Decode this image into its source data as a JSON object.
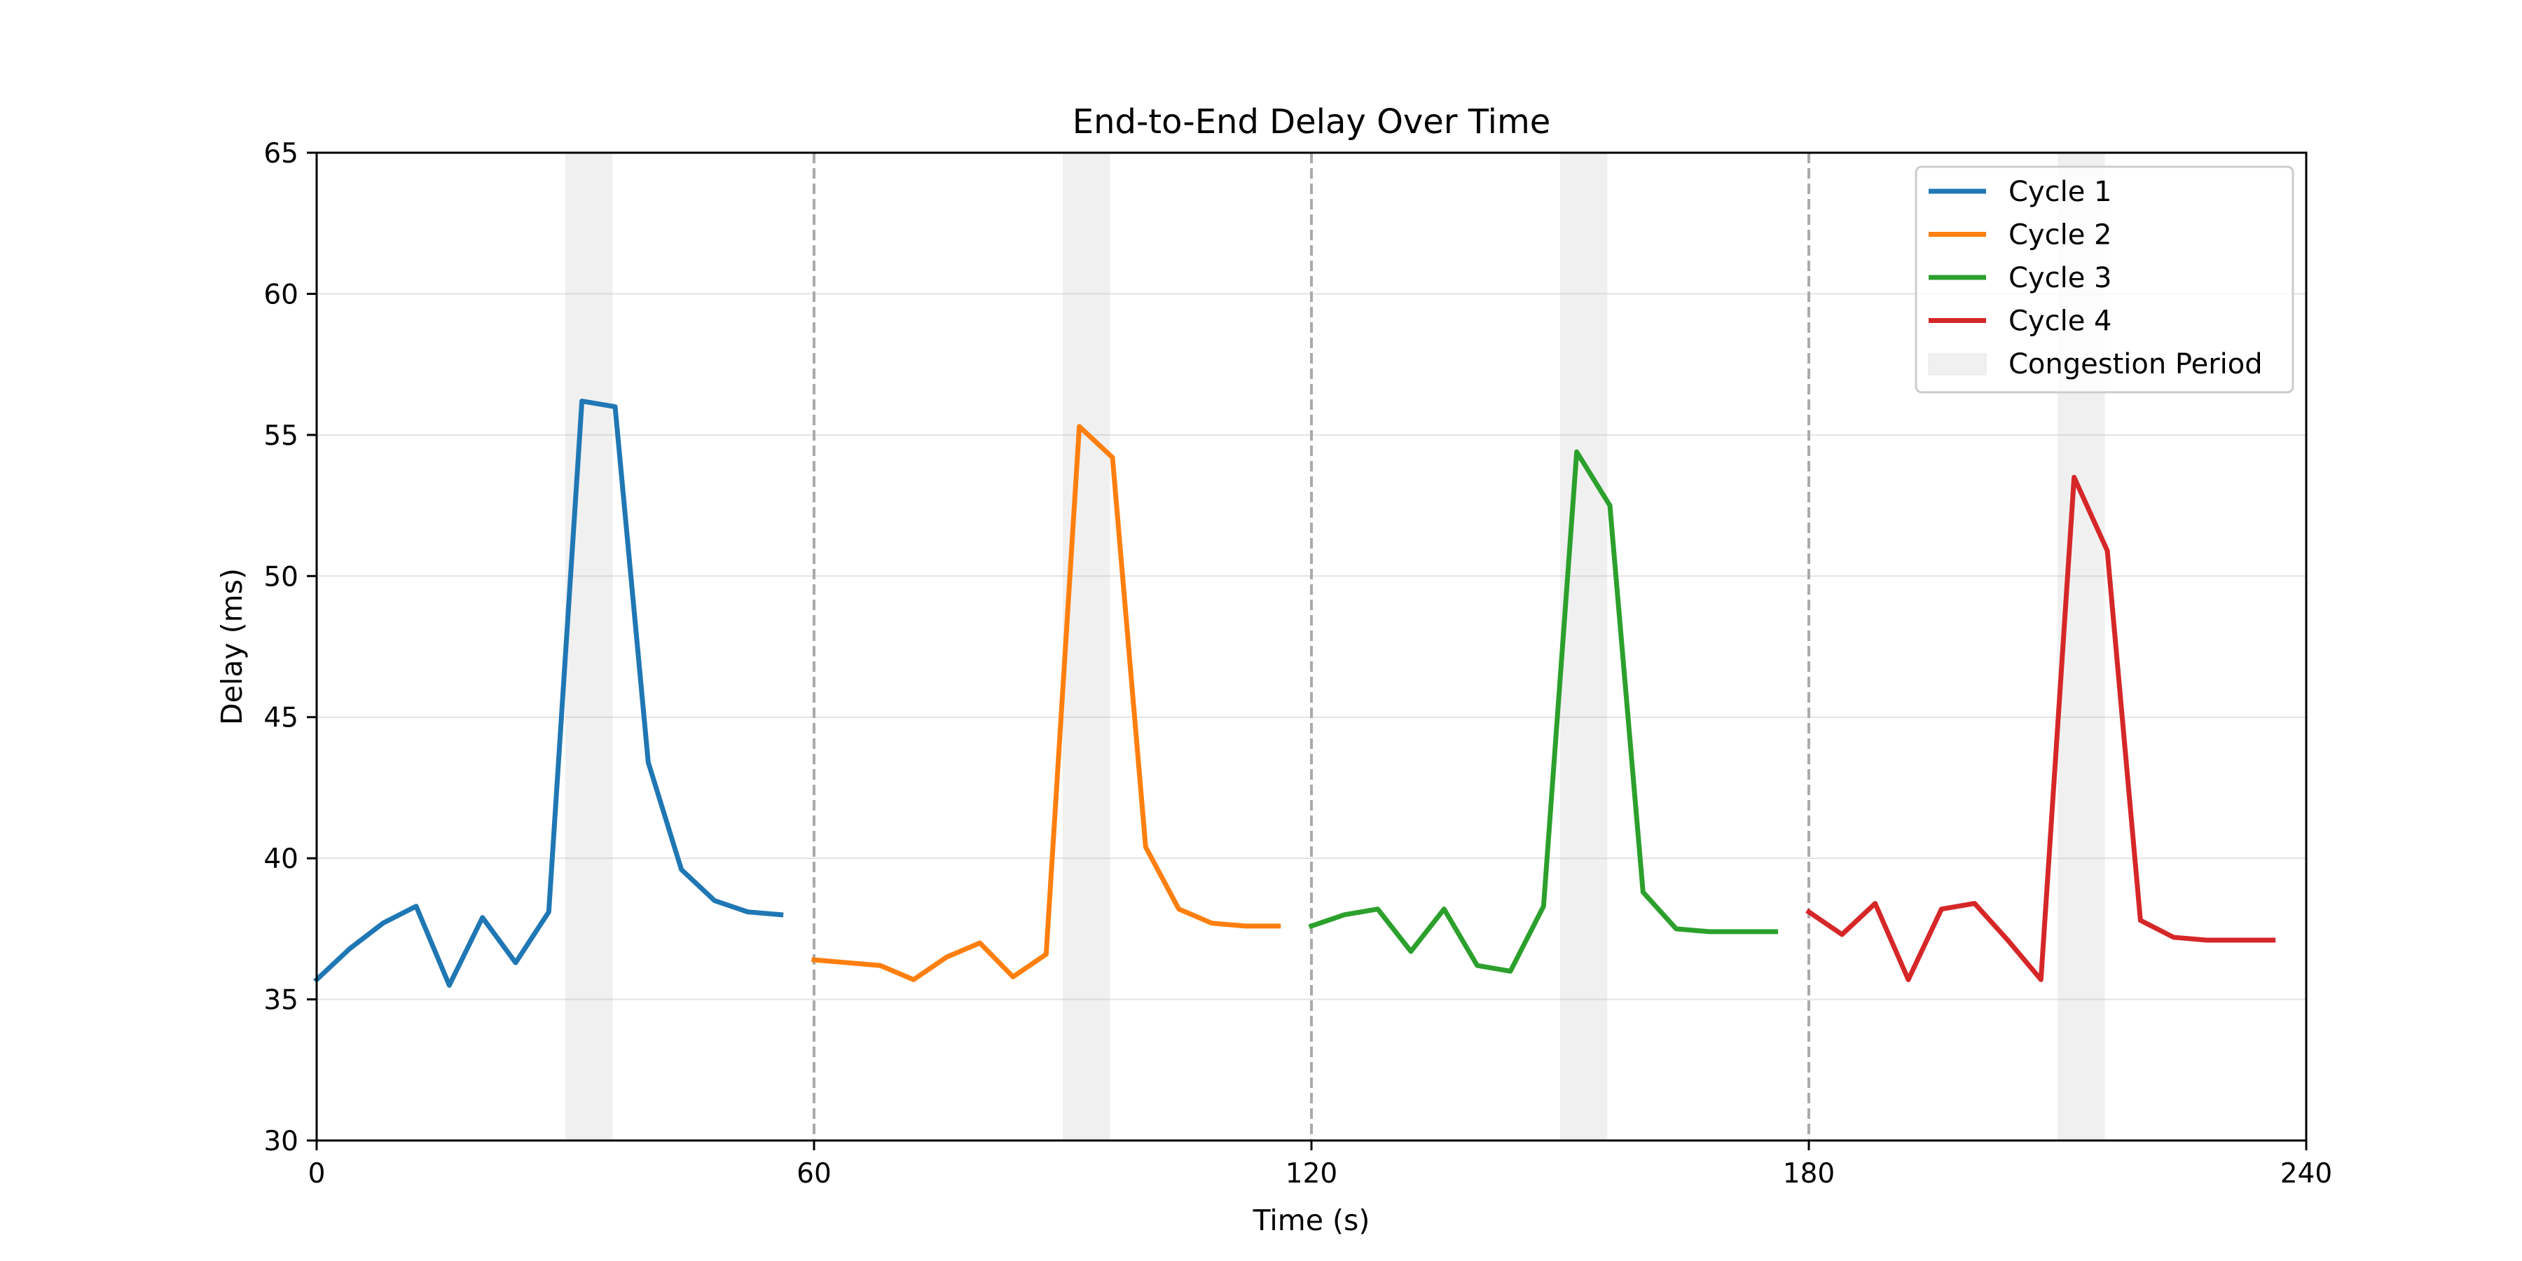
{
  "chart_data": {
    "type": "line",
    "title": "End-to-End Delay Over Time",
    "xlabel": "Time (s)",
    "ylabel": "Delay (ms)",
    "xlim": [
      0,
      240
    ],
    "ylim": [
      30,
      65
    ],
    "xticks": [
      0,
      60,
      120,
      180,
      240
    ],
    "yticks": [
      30,
      35,
      40,
      45,
      50,
      55,
      60,
      65
    ],
    "grid": "horizontal",
    "legend_position": "top-right",
    "cycle_boundaries": [
      60,
      120,
      180
    ],
    "congestion_periods": [
      [
        30,
        35.7
      ],
      [
        90,
        95.7
      ],
      [
        150,
        155.7
      ],
      [
        210,
        215.7
      ]
    ],
    "congestion_label": "Congestion Period",
    "congestion_color": "#d9d9d9",
    "boundary_color": "#aaaaaa",
    "series": [
      {
        "name": "Cycle 1",
        "color": "#1f77b4",
        "x": [
          0,
          4,
          8,
          12,
          16,
          20,
          24,
          28,
          32,
          36,
          40,
          44,
          48,
          52,
          56
        ],
        "y": [
          35.7,
          36.8,
          37.7,
          38.3,
          35.5,
          37.9,
          36.3,
          38.1,
          56.2,
          56.0,
          43.4,
          39.6,
          38.5,
          38.1,
          38.0
        ]
      },
      {
        "name": "Cycle 2",
        "color": "#ff7f0e",
        "x": [
          60,
          64,
          68,
          72,
          76,
          80,
          84,
          88,
          92,
          96,
          100,
          104,
          108,
          112,
          116
        ],
        "y": [
          36.4,
          36.3,
          36.2,
          35.7,
          36.5,
          37.0,
          35.8,
          36.6,
          55.3,
          54.2,
          40.4,
          38.2,
          37.7,
          37.6,
          37.6
        ]
      },
      {
        "name": "Cycle 3",
        "color": "#2ca02c",
        "x": [
          120,
          124,
          128,
          132,
          136,
          140,
          144,
          148,
          152,
          156,
          160,
          164,
          168,
          172,
          176
        ],
        "y": [
          37.6,
          38.0,
          38.2,
          36.7,
          38.2,
          36.2,
          36.0,
          38.3,
          54.4,
          52.5,
          38.8,
          37.5,
          37.4,
          37.4,
          37.4
        ]
      },
      {
        "name": "Cycle 4",
        "color": "#d62728",
        "x": [
          180,
          184,
          188,
          192,
          196,
          200,
          204,
          208,
          212,
          216,
          220,
          224,
          228,
          232,
          236
        ],
        "y": [
          38.1,
          37.3,
          38.4,
          35.7,
          38.2,
          38.4,
          37.1,
          35.7,
          53.5,
          50.9,
          37.8,
          37.2,
          37.1,
          37.1,
          37.1
        ]
      }
    ]
  }
}
